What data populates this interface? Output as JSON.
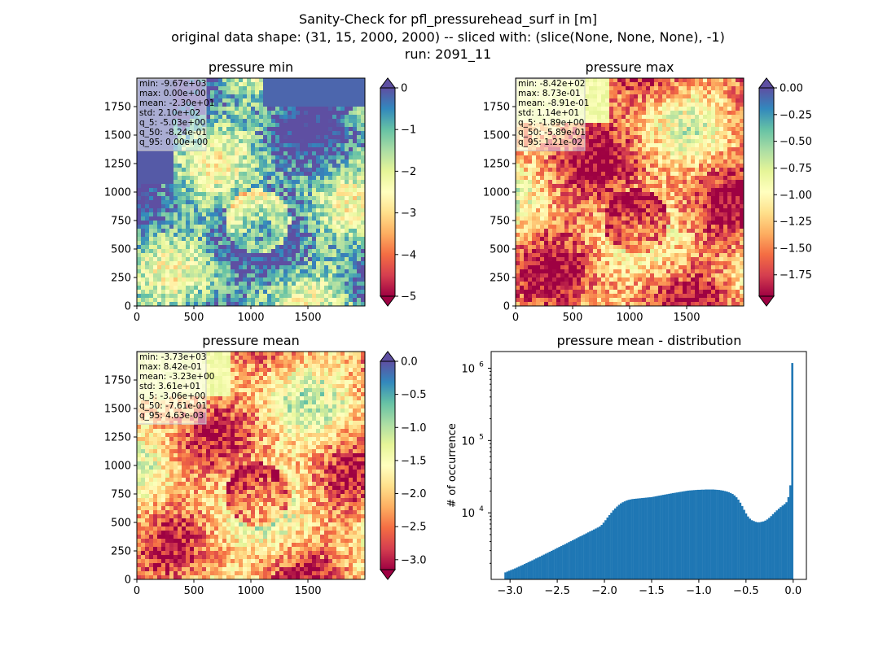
{
  "figure": {
    "suptitle_lines": [
      "Sanity-Check for pfl_pressurehead_surf in [m]",
      "original data shape: (31, 15, 2000, 2000) -- sliced with: (slice(None, None, None), -1)",
      "run: 2091_11"
    ]
  },
  "colors": {
    "spectral": [
      "#9e0142",
      "#d53e4f",
      "#f46d43",
      "#fdae61",
      "#fee08b",
      "#ffffbf",
      "#e6f598",
      "#abdda4",
      "#66c2a5",
      "#3288bd",
      "#5e4fa2"
    ],
    "histogram_bar": "#1f77b4"
  },
  "chart_data": [
    {
      "type": "heatmap",
      "id": "pmin",
      "title": "pressure min",
      "x_ticks": [
        0,
        500,
        1000,
        1500
      ],
      "y_ticks": [
        0,
        250,
        500,
        750,
        1000,
        1250,
        1500,
        1750
      ],
      "xlim": [
        0,
        2000
      ],
      "ylim": [
        0,
        2000
      ],
      "colorbar": {
        "min": -5,
        "max": 0,
        "ticks": [
          "0",
          "−1",
          "−2",
          "−3",
          "−4",
          "−5"
        ],
        "extend": "both"
      },
      "stats": [
        "min: -9.67e+03",
        "max: 0.00e+00",
        "mean: -2.30e+01",
        "std: 2.10e+02",
        "q_5: -5.03e+00",
        "q_50: -8.24e-01",
        "q_95: 0.00e+00"
      ]
    },
    {
      "type": "heatmap",
      "id": "pmax",
      "title": "pressure max",
      "x_ticks": [
        0,
        500,
        1000,
        1500
      ],
      "y_ticks": [
        0,
        250,
        500,
        750,
        1000,
        1250,
        1500,
        1750
      ],
      "xlim": [
        0,
        2000
      ],
      "ylim": [
        0,
        2000
      ],
      "colorbar": {
        "min": -1.95,
        "max": 0.0,
        "ticks": [
          "0.00",
          "−0.25",
          "−0.50",
          "−0.75",
          "−1.00",
          "−1.25",
          "−1.50",
          "−1.75"
        ],
        "extend": "both"
      },
      "stats": [
        "min: -8.42e+02",
        "max: 8.73e-01",
        "mean: -8.91e-01",
        "std: 1.14e+01",
        "q_5: -1.89e+00",
        "q_50: -5.89e-01",
        "q_95: 1.21e-02"
      ]
    },
    {
      "type": "heatmap",
      "id": "pmean",
      "title": "pressure mean",
      "x_ticks": [
        0,
        500,
        1000,
        1500
      ],
      "y_ticks": [
        0,
        250,
        500,
        750,
        1000,
        1250,
        1500,
        1750
      ],
      "xlim": [
        0,
        2000
      ],
      "ylim": [
        0,
        2000
      ],
      "colorbar": {
        "min": -3.15,
        "max": 0.0,
        "ticks": [
          "0.0",
          "−0.5",
          "−1.0",
          "−1.5",
          "−2.0",
          "−2.5",
          "−3.0"
        ],
        "extend": "both"
      },
      "stats": [
        "min: -3.73e+03",
        "max: 8.42e-01",
        "mean: -3.23e+00",
        "std: 3.61e+01",
        "q_5: -3.06e+00",
        "q_50: -7.61e-01",
        "q_95: 4.63e-03"
      ]
    },
    {
      "type": "bar",
      "id": "hist",
      "title": "pressure mean - distribution",
      "ylabel": "# of occurrence",
      "x_ticks": [
        "−3.0",
        "−2.5",
        "−2.0",
        "−1.5",
        "−1.0",
        "−0.5",
        "0.0"
      ],
      "xlim": [
        -3.2,
        0.14
      ],
      "ylim": [
        1200,
        1700000
      ],
      "yscale": "log",
      "bin_edges_range": [
        -3.06,
        0.0
      ],
      "bin_count": 150,
      "counts": [
        1500,
        1540,
        1580,
        1620,
        1660,
        1700,
        1750,
        1800,
        1850,
        1900,
        1960,
        2020,
        2080,
        2140,
        2200,
        2270,
        2340,
        2410,
        2480,
        2560,
        2640,
        2720,
        2800,
        2890,
        2980,
        3070,
        3170,
        3270,
        3370,
        3470,
        3580,
        3690,
        3810,
        3930,
        4050,
        4180,
        4310,
        4450,
        4590,
        4730,
        4880,
        5030,
        5190,
        5360,
        5530,
        5700,
        5880,
        6070,
        6260,
        6460,
        6800,
        7300,
        7900,
        8600,
        9300,
        10000,
        10800,
        11500,
        12200,
        12900,
        13500,
        14000,
        14400,
        14800,
        15100,
        15300,
        15500,
        15600,
        15700,
        15800,
        15900,
        16000,
        16100,
        16200,
        16300,
        16400,
        16500,
        16700,
        16900,
        17100,
        17300,
        17500,
        17700,
        17900,
        18100,
        18300,
        18500,
        18700,
        18900,
        19100,
        19300,
        19500,
        19700,
        19900,
        20100,
        20300,
        20400,
        20500,
        20600,
        20700,
        20800,
        20800,
        20900,
        20900,
        21000,
        21000,
        21000,
        21000,
        21000,
        20900,
        20800,
        20700,
        20500,
        20300,
        20000,
        19700,
        19300,
        18800,
        18200,
        17400,
        16400,
        15200,
        13800,
        12400,
        11000,
        9800,
        8900,
        8300,
        7900,
        7700,
        7500,
        7400,
        7400,
        7500,
        7600,
        7800,
        8100,
        8500,
        9000,
        9600,
        10200,
        10800,
        11400,
        12000,
        12600,
        13200,
        14000,
        16500,
        24000,
        1180000
      ]
    }
  ]
}
